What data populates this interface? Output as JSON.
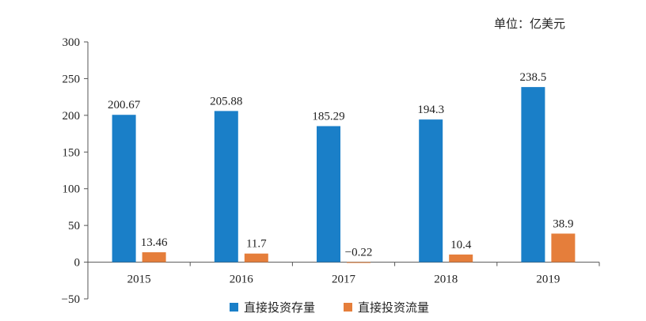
{
  "unit_label": "单位：亿美元",
  "colors": {
    "stock": "#1a7fc8",
    "flow": "#e57e3b",
    "axis": "#555555"
  },
  "chart_data": {
    "type": "bar",
    "categories": [
      "2015",
      "2016",
      "2017",
      "2018",
      "2019"
    ],
    "series": [
      {
        "name": "直接投资存量",
        "values": [
          200.67,
          205.88,
          185.29,
          194.3,
          238.5
        ],
        "labels": [
          "200.67",
          "205.88",
          "185.29",
          "194.3",
          "238.5"
        ]
      },
      {
        "name": "直接投资流量",
        "values": [
          13.46,
          11.7,
          -0.22,
          10.4,
          38.9
        ],
        "labels": [
          "13.46",
          "11.7",
          "−0.22",
          "10.4",
          "38.9"
        ]
      }
    ],
    "yticks": [
      "300",
      "250",
      "200",
      "150",
      "100",
      "50",
      "0",
      "−50"
    ],
    "ylim": [
      -50,
      300
    ],
    "grid": false,
    "legend": "bottom"
  }
}
